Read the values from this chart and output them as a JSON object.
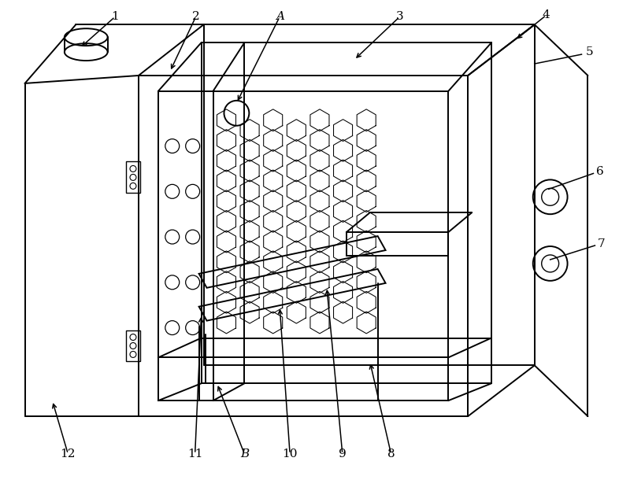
{
  "bg_color": "#ffffff",
  "line_color": "#000000",
  "fig_width": 7.86,
  "fig_height": 6.38
}
